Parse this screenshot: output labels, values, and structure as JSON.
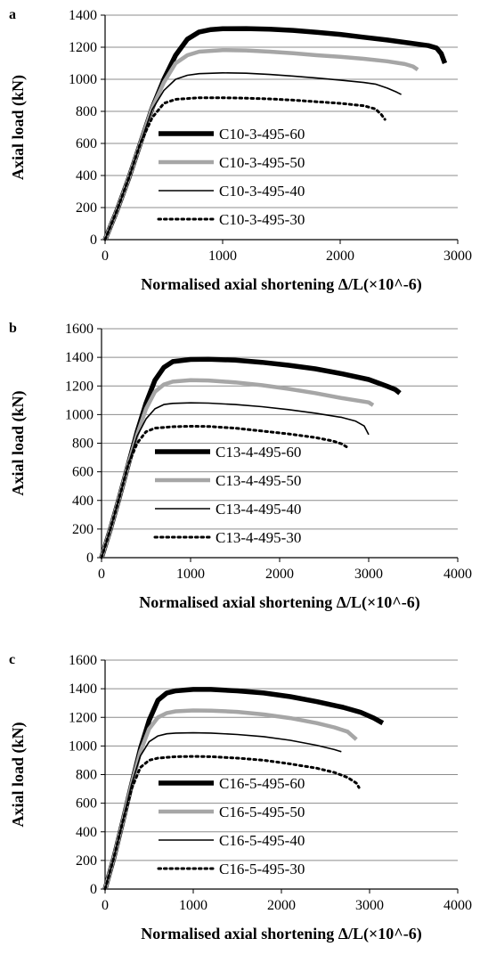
{
  "figure": {
    "panels": [
      "a",
      "b",
      "c"
    ]
  },
  "chart_data": [
    {
      "panel": "a",
      "type": "line",
      "xlabel": "Normalised axial shortening Δ/L(×10^-6)",
      "ylabel": "Axial load (kN)",
      "xlim": [
        0,
        3000
      ],
      "ylim": [
        0,
        1400
      ],
      "xticks": [
        0,
        1000,
        2000,
        3000
      ],
      "yticks": [
        0,
        200,
        400,
        600,
        800,
        1000,
        1200,
        1400
      ],
      "grid": "horizontal",
      "legend_position": "lower-left",
      "series": [
        {
          "name": "C10-3-495-60",
          "style": "thick-black",
          "points": [
            [
              0,
              0
            ],
            [
              100,
              180
            ],
            [
              200,
              380
            ],
            [
              300,
              600
            ],
            [
              400,
              820
            ],
            [
              500,
              1000
            ],
            [
              600,
              1150
            ],
            [
              700,
              1250
            ],
            [
              800,
              1295
            ],
            [
              900,
              1310
            ],
            [
              1000,
              1315
            ],
            [
              1200,
              1316
            ],
            [
              1400,
              1313
            ],
            [
              1600,
              1305
            ],
            [
              1800,
              1293
            ],
            [
              2000,
              1280
            ],
            [
              2200,
              1262
            ],
            [
              2400,
              1245
            ],
            [
              2600,
              1225
            ],
            [
              2750,
              1210
            ],
            [
              2820,
              1195
            ],
            [
              2860,
              1160
            ],
            [
              2890,
              1100
            ]
          ]
        },
        {
          "name": "C10-3-495-50",
          "style": "thick-grey",
          "points": [
            [
              0,
              0
            ],
            [
              100,
              180
            ],
            [
              200,
              380
            ],
            [
              300,
              600
            ],
            [
              400,
              820
            ],
            [
              500,
              980
            ],
            [
              600,
              1100
            ],
            [
              700,
              1150
            ],
            [
              800,
              1172
            ],
            [
              1000,
              1182
            ],
            [
              1200,
              1180
            ],
            [
              1400,
              1172
            ],
            [
              1600,
              1162
            ],
            [
              1800,
              1150
            ],
            [
              2000,
              1140
            ],
            [
              2200,
              1128
            ],
            [
              2400,
              1112
            ],
            [
              2550,
              1095
            ],
            [
              2620,
              1080
            ],
            [
              2660,
              1060
            ]
          ]
        },
        {
          "name": "C10-3-495-40",
          "style": "thin-black",
          "points": [
            [
              0,
              0
            ],
            [
              100,
              180
            ],
            [
              200,
              380
            ],
            [
              300,
              600
            ],
            [
              400,
              810
            ],
            [
              500,
              930
            ],
            [
              600,
              1000
            ],
            [
              700,
              1025
            ],
            [
              800,
              1035
            ],
            [
              1000,
              1040
            ],
            [
              1200,
              1038
            ],
            [
              1400,
              1030
            ],
            [
              1600,
              1020
            ],
            [
              1800,
              1008
            ],
            [
              2000,
              995
            ],
            [
              2200,
              980
            ],
            [
              2300,
              970
            ],
            [
              2400,
              945
            ],
            [
              2480,
              920
            ],
            [
              2520,
              905
            ]
          ]
        },
        {
          "name": "C10-3-495-30",
          "style": "dotted-black",
          "points": [
            [
              0,
              0
            ],
            [
              100,
              180
            ],
            [
              200,
              380
            ],
            [
              300,
              600
            ],
            [
              400,
              760
            ],
            [
              500,
              850
            ],
            [
              600,
              875
            ],
            [
              800,
              885
            ],
            [
              1000,
              885
            ],
            [
              1200,
              882
            ],
            [
              1400,
              878
            ],
            [
              1600,
              870
            ],
            [
              1800,
              860
            ],
            [
              2000,
              850
            ],
            [
              2200,
              835
            ],
            [
              2300,
              815
            ],
            [
              2350,
              780
            ],
            [
              2380,
              750
            ]
          ]
        }
      ]
    },
    {
      "panel": "b",
      "type": "line",
      "xlabel": "Normalised axial shortening Δ/L(×10^-6)",
      "ylabel": "Axial load (kN)",
      "xlim": [
        0,
        4000
      ],
      "ylim": [
        0,
        1600
      ],
      "xticks": [
        0,
        1000,
        2000,
        3000,
        4000
      ],
      "yticks": [
        0,
        200,
        400,
        600,
        800,
        1000,
        1200,
        1400,
        1600
      ],
      "grid": "horizontal",
      "legend_position": "lower-left",
      "series": [
        {
          "name": "C13-4-495-60",
          "style": "thick-black",
          "points": [
            [
              0,
              0
            ],
            [
              100,
              200
            ],
            [
              200,
              420
            ],
            [
              300,
              650
            ],
            [
              400,
              880
            ],
            [
              500,
              1080
            ],
            [
              600,
              1240
            ],
            [
              700,
              1330
            ],
            [
              800,
              1370
            ],
            [
              1000,
              1385
            ],
            [
              1200,
              1387
            ],
            [
              1500,
              1380
            ],
            [
              1800,
              1365
            ],
            [
              2100,
              1345
            ],
            [
              2400,
              1320
            ],
            [
              2700,
              1285
            ],
            [
              3000,
              1245
            ],
            [
              3200,
              1200
            ],
            [
              3300,
              1175
            ],
            [
              3350,
              1150
            ]
          ]
        },
        {
          "name": "C13-4-495-50",
          "style": "thick-grey",
          "points": [
            [
              0,
              0
            ],
            [
              100,
              200
            ],
            [
              200,
              420
            ],
            [
              300,
              650
            ],
            [
              400,
              860
            ],
            [
              500,
              1040
            ],
            [
              600,
              1160
            ],
            [
              700,
              1210
            ],
            [
              800,
              1230
            ],
            [
              1000,
              1240
            ],
            [
              1200,
              1238
            ],
            [
              1500,
              1225
            ],
            [
              1800,
              1205
            ],
            [
              2100,
              1180
            ],
            [
              2400,
              1150
            ],
            [
              2700,
              1115
            ],
            [
              3000,
              1085
            ],
            [
              3050,
              1065
            ]
          ]
        },
        {
          "name": "C13-4-495-40",
          "style": "thin-black",
          "points": [
            [
              0,
              0
            ],
            [
              100,
              200
            ],
            [
              200,
              420
            ],
            [
              300,
              650
            ],
            [
              400,
              850
            ],
            [
              500,
              970
            ],
            [
              600,
              1040
            ],
            [
              700,
              1070
            ],
            [
              800,
              1078
            ],
            [
              1000,
              1082
            ],
            [
              1200,
              1080
            ],
            [
              1500,
              1070
            ],
            [
              1800,
              1055
            ],
            [
              2100,
              1035
            ],
            [
              2400,
              1010
            ],
            [
              2700,
              980
            ],
            [
              2850,
              955
            ],
            [
              2950,
              920
            ],
            [
              3000,
              860
            ]
          ]
        },
        {
          "name": "C13-4-495-30",
          "style": "dotted-black",
          "points": [
            [
              0,
              0
            ],
            [
              100,
              200
            ],
            [
              200,
              420
            ],
            [
              300,
              650
            ],
            [
              400,
              800
            ],
            [
              500,
              880
            ],
            [
              600,
              905
            ],
            [
              800,
              915
            ],
            [
              1000,
              918
            ],
            [
              1200,
              917
            ],
            [
              1500,
              905
            ],
            [
              1800,
              885
            ],
            [
              2100,
              865
            ],
            [
              2400,
              840
            ],
            [
              2600,
              815
            ],
            [
              2700,
              795
            ],
            [
              2750,
              775
            ]
          ]
        }
      ]
    },
    {
      "panel": "c",
      "type": "line",
      "xlabel": "Normalised axial shortening Δ/L(×10^-6)",
      "ylabel": "Axial load (kN)",
      "xlim": [
        0,
        4000
      ],
      "ylim": [
        0,
        1600
      ],
      "xticks": [
        0,
        1000,
        2000,
        3000,
        4000
      ],
      "yticks": [
        0,
        200,
        400,
        600,
        800,
        1000,
        1200,
        1400,
        1600
      ],
      "grid": "horizontal",
      "legend_position": "lower-left",
      "series": [
        {
          "name": "C16-5-495-60",
          "style": "thick-black",
          "points": [
            [
              0,
              0
            ],
            [
              100,
              220
            ],
            [
              200,
              470
            ],
            [
              300,
              730
            ],
            [
              400,
              980
            ],
            [
              500,
              1180
            ],
            [
              600,
              1320
            ],
            [
              700,
              1370
            ],
            [
              800,
              1385
            ],
            [
              1000,
              1395
            ],
            [
              1200,
              1395
            ],
            [
              1500,
              1385
            ],
            [
              1800,
              1370
            ],
            [
              2100,
              1345
            ],
            [
              2400,
              1310
            ],
            [
              2700,
              1270
            ],
            [
              2900,
              1235
            ],
            [
              3050,
              1195
            ],
            [
              3150,
              1160
            ]
          ]
        },
        {
          "name": "C16-5-495-50",
          "style": "thick-grey",
          "points": [
            [
              0,
              0
            ],
            [
              100,
              220
            ],
            [
              200,
              470
            ],
            [
              300,
              730
            ],
            [
              400,
              960
            ],
            [
              500,
              1120
            ],
            [
              600,
              1200
            ],
            [
              700,
              1230
            ],
            [
              800,
              1242
            ],
            [
              1000,
              1248
            ],
            [
              1200,
              1247
            ],
            [
              1500,
              1238
            ],
            [
              1800,
              1220
            ],
            [
              2100,
              1195
            ],
            [
              2400,
              1160
            ],
            [
              2600,
              1130
            ],
            [
              2750,
              1100
            ],
            [
              2850,
              1045
            ]
          ]
        },
        {
          "name": "C16-5-495-40",
          "style": "thin-black",
          "points": [
            [
              0,
              0
            ],
            [
              100,
              220
            ],
            [
              200,
              470
            ],
            [
              300,
              730
            ],
            [
              400,
              930
            ],
            [
              500,
              1030
            ],
            [
              600,
              1070
            ],
            [
              700,
              1085
            ],
            [
              800,
              1090
            ],
            [
              1000,
              1092
            ],
            [
              1200,
              1090
            ],
            [
              1500,
              1080
            ],
            [
              1800,
              1065
            ],
            [
              2100,
              1040
            ],
            [
              2400,
              1005
            ],
            [
              2600,
              975
            ],
            [
              2680,
              960
            ]
          ]
        },
        {
          "name": "C16-5-495-30",
          "style": "dotted-black",
          "points": [
            [
              0,
              0
            ],
            [
              100,
              220
            ],
            [
              200,
              470
            ],
            [
              300,
              700
            ],
            [
              400,
              850
            ],
            [
              500,
              900
            ],
            [
              600,
              915
            ],
            [
              800,
              925
            ],
            [
              1000,
              927
            ],
            [
              1200,
              925
            ],
            [
              1500,
              915
            ],
            [
              1800,
              900
            ],
            [
              2100,
              875
            ],
            [
              2400,
              845
            ],
            [
              2600,
              815
            ],
            [
              2750,
              780
            ],
            [
              2850,
              740
            ],
            [
              2880,
              710
            ]
          ]
        }
      ]
    }
  ]
}
